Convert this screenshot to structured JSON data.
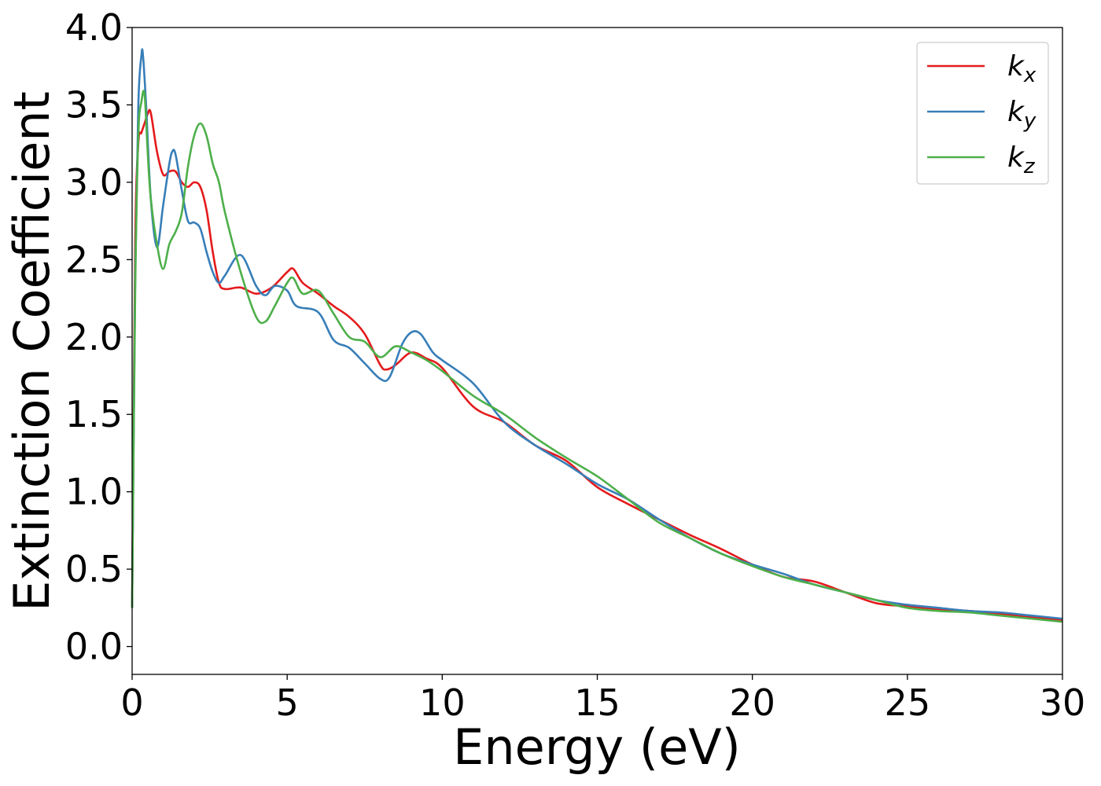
{
  "chart_data": {
    "type": "line",
    "xlabel": "Energy (eV)",
    "ylabel": "Extinction Coefficient",
    "xlim": [
      0,
      30
    ],
    "ylim": [
      -0.18,
      4.0
    ],
    "xticks": [
      "0",
      "5",
      "10",
      "15",
      "20",
      "25",
      "30"
    ],
    "yticks": [
      "0.0",
      "0.5",
      "1.0",
      "1.5",
      "2.0",
      "2.5",
      "3.0",
      "3.5",
      "4.0"
    ],
    "grid": false,
    "legend_position": "top-right",
    "series": [
      {
        "name": "k",
        "subscript": "x",
        "color": "#e41a1c",
        "x": [
          0,
          0.1,
          0.2,
          0.3,
          0.4,
          0.5,
          0.6,
          0.8,
          1.0,
          1.2,
          1.4,
          1.6,
          1.8,
          2.0,
          2.2,
          2.4,
          2.6,
          2.8,
          3.0,
          3.5,
          4.0,
          4.5,
          5.0,
          5.2,
          5.5,
          6.0,
          6.5,
          7.0,
          7.5,
          8.0,
          8.2,
          8.5,
          9.0,
          9.5,
          10,
          11,
          12,
          13,
          14,
          15,
          16,
          17,
          18,
          19,
          20,
          21,
          22,
          23,
          24,
          25,
          26,
          27,
          28,
          29,
          30
        ],
        "values": [
          0.25,
          2.6,
          3.25,
          3.32,
          3.38,
          3.44,
          3.45,
          3.2,
          3.05,
          3.07,
          3.07,
          3.0,
          2.97,
          3.0,
          2.97,
          2.82,
          2.55,
          2.35,
          2.31,
          2.32,
          2.28,
          2.32,
          2.42,
          2.44,
          2.35,
          2.28,
          2.2,
          2.13,
          2.02,
          1.82,
          1.79,
          1.82,
          1.9,
          1.86,
          1.8,
          1.55,
          1.45,
          1.3,
          1.2,
          1.03,
          0.92,
          0.82,
          0.72,
          0.63,
          0.53,
          0.45,
          0.42,
          0.35,
          0.28,
          0.26,
          0.24,
          0.23,
          0.21,
          0.19,
          0.17
        ]
      },
      {
        "name": "k",
        "subscript": "y",
        "color": "#377eb8",
        "x": [
          0,
          0.1,
          0.2,
          0.3,
          0.35,
          0.45,
          0.6,
          0.8,
          1.0,
          1.2,
          1.3,
          1.4,
          1.6,
          1.8,
          2.0,
          2.2,
          2.4,
          2.6,
          2.8,
          3.0,
          3.5,
          4.0,
          4.3,
          4.6,
          5.0,
          5.3,
          6.0,
          6.5,
          7.0,
          7.5,
          8.0,
          8.3,
          8.7,
          9.0,
          9.3,
          9.7,
          10,
          11,
          12,
          13,
          14,
          15,
          16,
          17,
          18,
          19,
          20,
          21,
          22,
          23,
          24,
          25,
          26,
          27,
          28,
          29,
          30
        ],
        "values": [
          0.25,
          2.4,
          3.5,
          3.82,
          3.82,
          3.5,
          2.9,
          2.58,
          2.85,
          3.12,
          3.2,
          3.18,
          2.95,
          2.75,
          2.74,
          2.7,
          2.55,
          2.42,
          2.35,
          2.4,
          2.53,
          2.33,
          2.27,
          2.33,
          2.3,
          2.2,
          2.16,
          1.98,
          1.93,
          1.83,
          1.73,
          1.74,
          1.95,
          2.03,
          2.02,
          1.9,
          1.85,
          1.7,
          1.45,
          1.3,
          1.18,
          1.05,
          0.95,
          0.82,
          0.7,
          0.6,
          0.53,
          0.47,
          0.4,
          0.35,
          0.3,
          0.27,
          0.25,
          0.23,
          0.22,
          0.2,
          0.18
        ]
      },
      {
        "name": "k",
        "subscript": "z",
        "color": "#4daf4a",
        "x": [
          0,
          0.1,
          0.2,
          0.3,
          0.4,
          0.5,
          0.6,
          0.8,
          1.0,
          1.2,
          1.4,
          1.6,
          1.8,
          2.0,
          2.2,
          2.4,
          2.6,
          2.8,
          3.0,
          3.5,
          4.0,
          4.3,
          4.6,
          5.0,
          5.2,
          5.5,
          6.0,
          6.5,
          7.0,
          7.5,
          8.0,
          8.5,
          9.0,
          9.5,
          10,
          11,
          12,
          13,
          14,
          15,
          16,
          17,
          18,
          19,
          20,
          21,
          22,
          23,
          24,
          25,
          26,
          27,
          28,
          29,
          30
        ],
        "values": [
          0.25,
          2.3,
          3.3,
          3.52,
          3.57,
          3.2,
          2.9,
          2.6,
          2.44,
          2.6,
          2.68,
          2.8,
          3.1,
          3.3,
          3.38,
          3.3,
          3.12,
          3.0,
          2.8,
          2.42,
          2.13,
          2.1,
          2.2,
          2.35,
          2.38,
          2.28,
          2.3,
          2.15,
          2.0,
          1.97,
          1.87,
          1.94,
          1.9,
          1.85,
          1.78,
          1.62,
          1.5,
          1.35,
          1.22,
          1.1,
          0.95,
          0.8,
          0.7,
          0.6,
          0.52,
          0.45,
          0.4,
          0.35,
          0.3,
          0.25,
          0.23,
          0.22,
          0.2,
          0.18,
          0.16
        ]
      }
    ]
  }
}
